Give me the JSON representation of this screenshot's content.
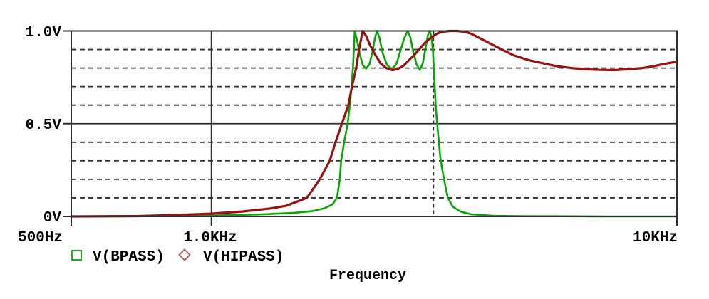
{
  "chart_data": {
    "type": "line",
    "title": "",
    "xlabel": "Frequency",
    "ylabel": "",
    "x_scale": "log",
    "x_range_hz": [
      500,
      10000
    ],
    "y_range_v": [
      0,
      1.0
    ],
    "grid": true,
    "x_ticks": [
      {
        "label": "500Hz",
        "hz": 500
      },
      {
        "label": "1.0KHz",
        "hz": 1000
      },
      {
        "label": "10KHz",
        "hz": 10000
      }
    ],
    "y_ticks": [
      {
        "label": "0V",
        "v": 0
      },
      {
        "label": "0.5V",
        "v": 0.5
      },
      {
        "label": "1.0V",
        "v": 1.0
      }
    ],
    "y_minor_grid_v": [
      0.1,
      0.2,
      0.3,
      0.4,
      0.6,
      0.7,
      0.8,
      0.9
    ],
    "x_solid_grid_hz": [
      1000
    ],
    "x_dashed_marker_hz": [
      3000
    ],
    "legend_position": "bottom-left",
    "series": [
      {
        "name": "V(BPASS)",
        "marker": "open-square",
        "color": "#00AA00",
        "marker_color": "#22AC22",
        "points": [
          [
            500,
            0
          ],
          [
            700,
            0.002
          ],
          [
            900,
            0.004
          ],
          [
            1100,
            0.007
          ],
          [
            1300,
            0.012
          ],
          [
            1500,
            0.019
          ],
          [
            1650,
            0.029
          ],
          [
            1750,
            0.044
          ],
          [
            1820,
            0.065
          ],
          [
            1861,
            0.1
          ],
          [
            1887,
            0.2
          ],
          [
            1900,
            0.3
          ],
          [
            1928,
            0.4
          ],
          [
            1962,
            0.5
          ],
          [
            1983,
            0.6
          ],
          [
            2000,
            0.7
          ],
          [
            2014,
            0.8
          ],
          [
            2023,
            0.9
          ],
          [
            2032,
            1.0
          ],
          [
            2055,
            0.95
          ],
          [
            2085,
            0.87
          ],
          [
            2115,
            0.815
          ],
          [
            2150,
            0.797
          ],
          [
            2185,
            0.82
          ],
          [
            2215,
            0.88
          ],
          [
            2245,
            0.96
          ],
          [
            2268,
            1.0
          ],
          [
            2295,
            0.965
          ],
          [
            2330,
            0.885
          ],
          [
            2385,
            0.815
          ],
          [
            2443,
            0.795
          ],
          [
            2495,
            0.82
          ],
          [
            2545,
            0.89
          ],
          [
            2595,
            0.96
          ],
          [
            2640,
            1.0
          ],
          [
            2675,
            0.965
          ],
          [
            2715,
            0.885
          ],
          [
            2760,
            0.818
          ],
          [
            2803,
            0.79
          ],
          [
            2845,
            0.825
          ],
          [
            2885,
            0.91
          ],
          [
            2920,
            0.98
          ],
          [
            2945,
            1.0
          ],
          [
            2968,
            0.97
          ],
          [
            2990,
            0.9
          ],
          [
            3010,
            0.76
          ],
          [
            3035,
            0.58
          ],
          [
            3065,
            0.46
          ],
          [
            3105,
            0.31
          ],
          [
            3160,
            0.2
          ],
          [
            3220,
            0.1
          ],
          [
            3300,
            0.053
          ],
          [
            3430,
            0.026
          ],
          [
            3620,
            0.011
          ],
          [
            4020,
            0.004
          ],
          [
            4600,
            0.002
          ],
          [
            5500,
            0.001
          ],
          [
            7000,
            0
          ],
          [
            10000,
            0
          ]
        ]
      },
      {
        "name": "V(HIPASS)",
        "marker": "open-diamond",
        "color": "#9B1111",
        "marker_color": "#C05050",
        "points": [
          [
            500,
            0
          ],
          [
            700,
            0.002
          ],
          [
            850,
            0.008
          ],
          [
            1000,
            0.015
          ],
          [
            1170,
            0.027
          ],
          [
            1340,
            0.043
          ],
          [
            1450,
            0.058
          ],
          [
            1604,
            0.1
          ],
          [
            1709,
            0.2
          ],
          [
            1796,
            0.3
          ],
          [
            1847,
            0.4
          ],
          [
            1907,
            0.5
          ],
          [
            1969,
            0.6
          ],
          [
            2004,
            0.7
          ],
          [
            2046,
            0.8
          ],
          [
            2076,
            0.9
          ],
          [
            2113,
            1.0
          ],
          [
            2150,
            0.972
          ],
          [
            2190,
            0.925
          ],
          [
            2245,
            0.875
          ],
          [
            2310,
            0.825
          ],
          [
            2375,
            0.8
          ],
          [
            2445,
            0.789
          ],
          [
            2510,
            0.794
          ],
          [
            2585,
            0.812
          ],
          [
            2650,
            0.84
          ],
          [
            2725,
            0.87
          ],
          [
            2805,
            0.905
          ],
          [
            2885,
            0.94
          ],
          [
            2965,
            0.965
          ],
          [
            3050,
            0.985
          ],
          [
            3140,
            0.996
          ],
          [
            3250,
            1.0
          ],
          [
            3370,
            1.0
          ],
          [
            3490,
            0.996
          ],
          [
            3615,
            0.985
          ],
          [
            3880,
            0.945
          ],
          [
            4165,
            0.905
          ],
          [
            4470,
            0.868
          ],
          [
            4800,
            0.843
          ],
          [
            5150,
            0.826
          ],
          [
            5520,
            0.81
          ],
          [
            5930,
            0.8
          ],
          [
            6365,
            0.793
          ],
          [
            6830,
            0.79
          ],
          [
            7330,
            0.789
          ],
          [
            7870,
            0.793
          ],
          [
            8445,
            0.8
          ],
          [
            8900,
            0.81
          ],
          [
            9380,
            0.822
          ],
          [
            10000,
            0.835
          ]
        ]
      }
    ],
    "colors": {
      "frame": "#2e2e2e",
      "minor_grid": "#333333",
      "text": "#000000",
      "background": "#ffffff"
    }
  }
}
